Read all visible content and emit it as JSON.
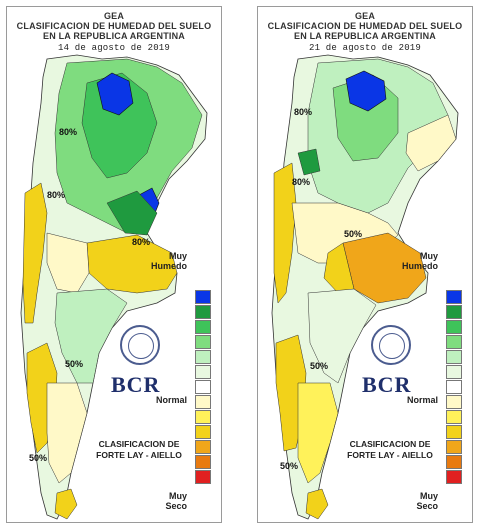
{
  "panels": [
    {
      "header": {
        "org": "GEA",
        "title_line1": "CLASIFICACION DE HUMEDAD DEL SUELO",
        "title_line2": "EN LA REPUBLICA ARGENTINA",
        "date": "14 de agosto de 2019"
      },
      "isolines": [
        "80%",
        "80%",
        "80%",
        "50%",
        "50%"
      ],
      "legend": {
        "top": "Muy\nHumedo",
        "top_a": "Muy",
        "top_b": "Humedo",
        "mid": "Normal",
        "bottom_a": "Muy",
        "bottom_b": "Seco"
      },
      "logo_text": "BCR",
      "classification": {
        "line1": "CLASIFICACION DE",
        "line2": "FORTE LAY - AIELLO"
      }
    },
    {
      "header": {
        "org": "GEA",
        "title_line1": "CLASIFICACION DE HUMEDAD DEL SUELO",
        "title_line2": "EN LA REPUBLICA ARGENTINA",
        "date": "21 de agosto de 2019"
      },
      "isolines": [
        "80%",
        "80%",
        "50%",
        "50%",
        "50%"
      ],
      "legend": {
        "top_a": "Muy",
        "top_b": "Humedo",
        "mid": "Normal",
        "bottom_a": "Muy",
        "bottom_b": "Seco"
      },
      "logo_text": "BCR",
      "classification": {
        "line1": "CLASIFICACION DE",
        "line2": "FORTE LAY - AIELLO"
      }
    }
  ],
  "legend_colors": [
    "#0a36e6",
    "#1f9a3f",
    "#3fc35a",
    "#7fdc7f",
    "#bff0bf",
    "#e8f8e0",
    "#ffffff",
    "#fff9c8",
    "#fff25a",
    "#f2d21a",
    "#f0a61a",
    "#e87a10",
    "#e02020"
  ]
}
